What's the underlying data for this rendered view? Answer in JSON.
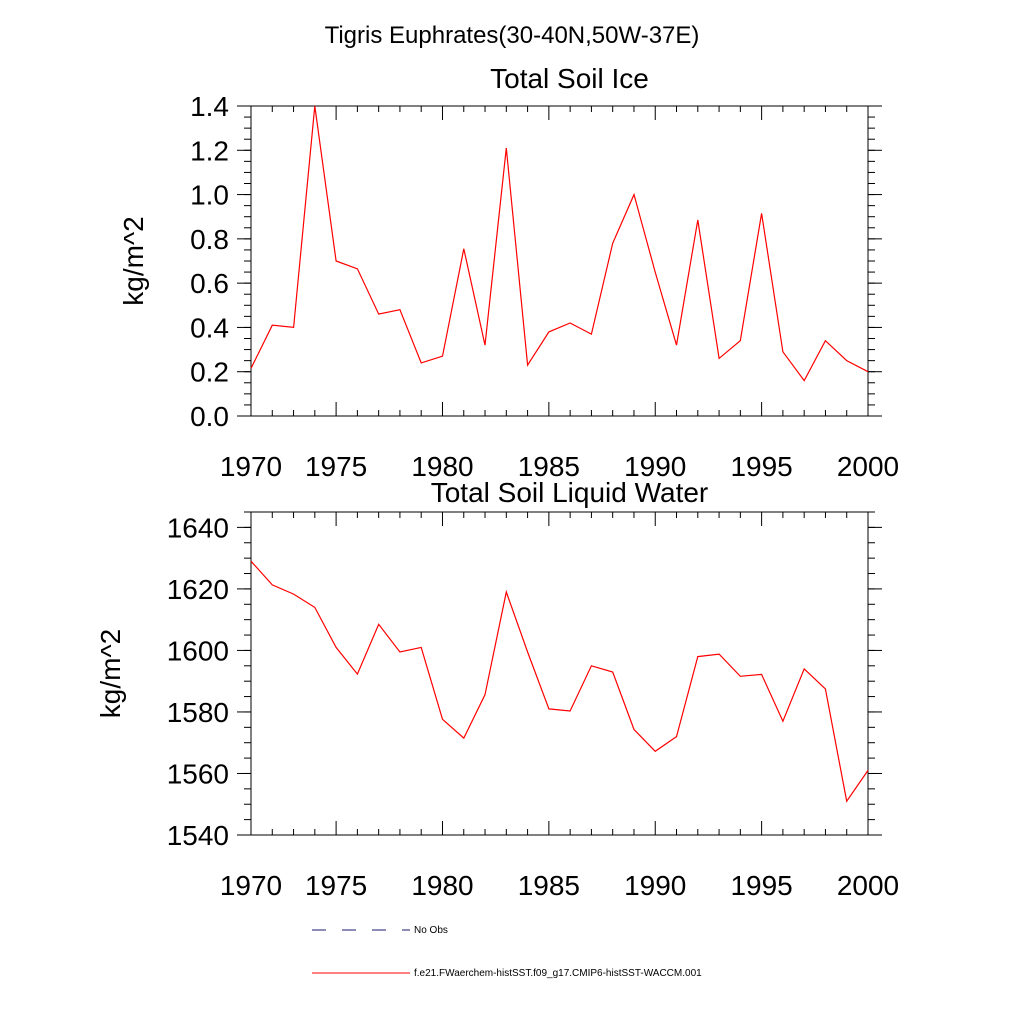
{
  "suptitle": "Tigris Euphrates(30-40N,50W-37E)",
  "chart_data": [
    {
      "type": "line",
      "title": "Total Soil Ice",
      "xlabel": "",
      "ylabel": "kg/m^2",
      "xlim": [
        1971,
        2000
      ],
      "ylim": [
        0.0,
        1.4
      ],
      "xticks": [
        1970,
        1975,
        1980,
        1985,
        1990,
        1995,
        2000
      ],
      "yticks": [
        "0.0",
        "0.2",
        "0.4",
        "0.6",
        "0.8",
        "1.0",
        "1.2",
        "1.4"
      ],
      "grid": false,
      "x": [
        1971,
        1972,
        1973,
        1974,
        1975,
        1976,
        1977,
        1978,
        1979,
        1980,
        1981,
        1982,
        1983,
        1984,
        1985,
        1986,
        1987,
        1988,
        1989,
        1990,
        1991,
        1992,
        1993,
        1994,
        1995,
        1996,
        1997,
        1998,
        1999,
        2000
      ],
      "series": [
        {
          "color": "#ff0000",
          "values": [
            0.215,
            0.41,
            0.4,
            1.4,
            0.7,
            0.665,
            0.46,
            0.48,
            0.24,
            0.27,
            0.755,
            0.32,
            1.21,
            0.23,
            0.38,
            0.42,
            0.37,
            0.78,
            1.0,
            0.65,
            0.32,
            0.885,
            0.26,
            0.34,
            0.915,
            0.29,
            0.16,
            0.34,
            0.25,
            0.2
          ]
        }
      ]
    },
    {
      "type": "line",
      "title": "Total Soil Liquid Water",
      "xlabel": "",
      "ylabel": "kg/m^2",
      "xlim": [
        1971,
        2000
      ],
      "ylim": [
        1540,
        1645
      ],
      "xticks": [
        1970,
        1975,
        1980,
        1985,
        1990,
        1995,
        2000
      ],
      "yticks": [
        "1540",
        "1560",
        "1580",
        "1600",
        "1620",
        "1640"
      ],
      "grid": false,
      "x": [
        1971,
        1972,
        1973,
        1974,
        1975,
        1976,
        1977,
        1978,
        1979,
        1980,
        1981,
        1982,
        1983,
        1984,
        1985,
        1986,
        1987,
        1988,
        1989,
        1990,
        1991,
        1992,
        1993,
        1994,
        1995,
        1996,
        1997,
        1998,
        1999,
        2000
      ],
      "series": [
        {
          "color": "#ff0000",
          "values": [
            1629,
            1621.3,
            1618.3,
            1614,
            1601,
            1592.3,
            1608.5,
            1599.5,
            1601,
            1577.6,
            1571.5,
            1585.6,
            1619,
            1599.5,
            1581,
            1580.3,
            1595,
            1593,
            1574.3,
            1567.2,
            1572,
            1598,
            1598.8,
            1591.6,
            1592.2,
            1577,
            1594,
            1587.5,
            1551,
            1561
          ]
        }
      ]
    }
  ],
  "legend": {
    "items": [
      {
        "label": "No Obs",
        "style": "dashed",
        "color": "#1a1a6e"
      },
      {
        "label": "f.e21.FWaerchem-histSST.f09_g17.CMIP6-histSST-WACCM.001",
        "style": "solid",
        "color": "#ff0000"
      }
    ]
  }
}
